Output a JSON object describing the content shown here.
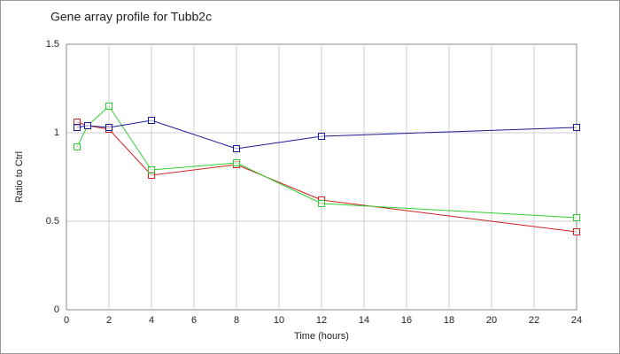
{
  "chart_data": {
    "type": "line",
    "title": "Gene array profile for Tubb2c",
    "x_label": "Time (hours)",
    "y_label": "Ratio to Ctrl",
    "x": [
      0.5,
      1,
      2,
      4,
      8,
      12,
      24
    ],
    "series": [
      {
        "color": "#cc2222",
        "values": [
          1.06,
          1.04,
          1.02,
          0.76,
          0.82,
          0.62,
          0.44
        ]
      },
      {
        "color": "#33cc33",
        "values": [
          0.92,
          1.04,
          1.15,
          0.79,
          0.83,
          0.6,
          0.52
        ]
      },
      {
        "color": "#1a1a99",
        "values": [
          1.03,
          1.04,
          1.03,
          1.07,
          0.91,
          0.98,
          1.03
        ]
      }
    ],
    "xlim": [
      0,
      24
    ],
    "xticks": [
      0,
      2,
      4,
      6,
      8,
      10,
      12,
      14,
      16,
      18,
      20,
      22,
      24
    ],
    "ylim": [
      0,
      1.5
    ],
    "yticks": [
      0,
      0.5,
      1,
      1.5
    ],
    "grid": true
  }
}
